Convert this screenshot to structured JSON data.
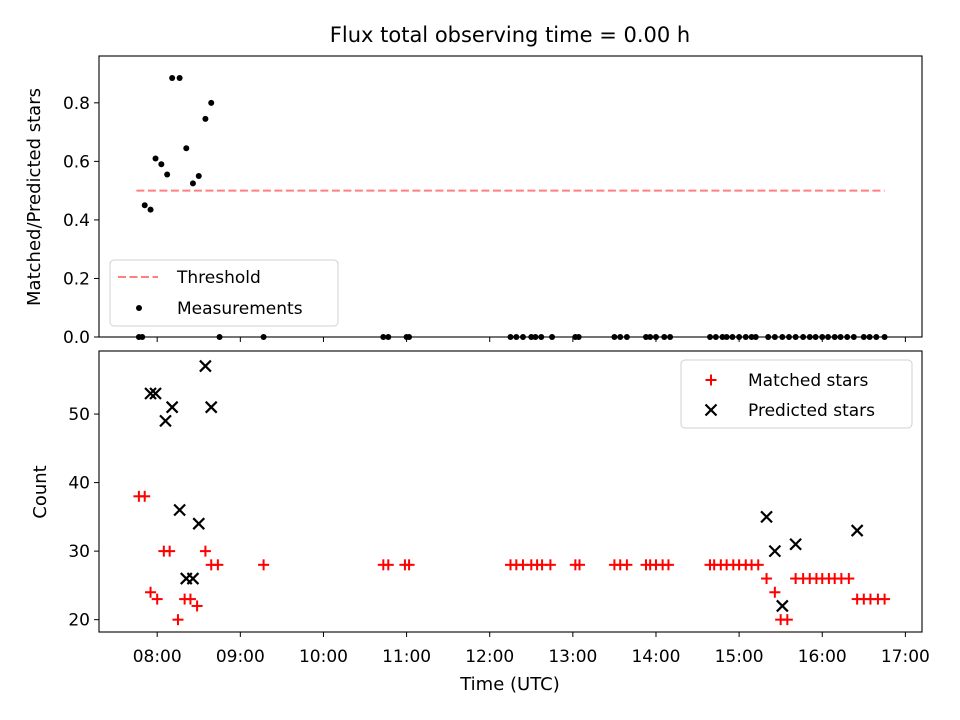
{
  "chart_data": [
    {
      "type": "scatter",
      "title": "Flux total observing time = 0.00 h",
      "xlabel": "",
      "ylabel": "Matched/Predicted stars",
      "xlim": [
        7.3,
        17.2
      ],
      "ylim": [
        0.0,
        0.96
      ],
      "yticks": [
        0.0,
        0.2,
        0.4,
        0.6,
        0.8
      ],
      "yticklabels": [
        "0.0",
        "0.2",
        "0.4",
        "0.6",
        "0.8"
      ],
      "legend_position": "lower-left",
      "threshold": {
        "name": "Threshold",
        "x": [
          7.75,
          16.75
        ],
        "y": 0.5,
        "color": "#ff7f7f"
      },
      "series": [
        {
          "name": "Measurements",
          "color": "#000000",
          "x": [
            7.85,
            7.92,
            7.98,
            8.05,
            8.12,
            8.18,
            8.27,
            8.35,
            8.43,
            8.5,
            8.58,
            8.65,
            7.78,
            7.82,
            8.75,
            9.28,
            10.72,
            10.78,
            11.0,
            11.03,
            12.25,
            12.32,
            12.4,
            12.5,
            12.55,
            12.62,
            12.75,
            13.03,
            13.07,
            13.5,
            13.57,
            13.65,
            13.88,
            13.93,
            14.0,
            14.1,
            14.17,
            14.65,
            14.72,
            14.8,
            14.85,
            14.92,
            15.0,
            15.08,
            15.15,
            15.2,
            15.35,
            15.43,
            15.52,
            15.6,
            15.68,
            15.77,
            15.85,
            15.92,
            16.0,
            16.07,
            16.15,
            16.22,
            16.3,
            16.38,
            16.5,
            16.57,
            16.65,
            16.75
          ],
          "y": [
            0.45,
            0.435,
            0.61,
            0.59,
            0.555,
            0.885,
            0.885,
            0.645,
            0.525,
            0.55,
            0.745,
            0.8,
            0.0,
            0.0,
            0.0,
            0.0,
            0.0,
            0.0,
            0.0,
            0.0,
            0.0,
            0.0,
            0.0,
            0.0,
            0.0,
            0.0,
            0.0,
            0.0,
            0.0,
            0.0,
            0.0,
            0.0,
            0.0,
            0.0,
            0.0,
            0.0,
            0.0,
            0.0,
            0.0,
            0.0,
            0.0,
            0.0,
            0.0,
            0.0,
            0.0,
            0.0,
            0.0,
            0.0,
            0.0,
            0.0,
            0.0,
            0.0,
            0.0,
            0.0,
            0.0,
            0.0,
            0.0,
            0.0,
            0.0,
            0.0,
            0.0,
            0.0,
            0.0,
            0.0
          ]
        }
      ]
    },
    {
      "type": "scatter",
      "title": "",
      "xlabel": "Time (UTC)",
      "ylabel": "Count",
      "xlim": [
        7.3,
        17.2
      ],
      "ylim": [
        18.2,
        59.2
      ],
      "xticks": [
        8,
        9,
        10,
        11,
        12,
        13,
        14,
        15,
        16,
        17
      ],
      "xticklabels": [
        "08:00",
        "09:00",
        "10:00",
        "11:00",
        "12:00",
        "13:00",
        "14:00",
        "15:00",
        "16:00",
        "17:00"
      ],
      "yticks": [
        20,
        30,
        40,
        50
      ],
      "yticklabels": [
        "20",
        "30",
        "40",
        "50"
      ],
      "legend_position": "upper-right",
      "series": [
        {
          "name": "Matched stars",
          "color": "#ff0000",
          "x": [
            7.78,
            7.85,
            7.92,
            8.0,
            8.08,
            8.15,
            8.25,
            8.33,
            8.4,
            8.48,
            8.58,
            8.65,
            8.73,
            9.28,
            10.72,
            10.78,
            10.98,
            11.03,
            12.25,
            12.32,
            12.4,
            12.5,
            12.57,
            12.63,
            12.73,
            13.03,
            13.08,
            13.5,
            13.57,
            13.65,
            13.88,
            13.93,
            14.0,
            14.08,
            14.15,
            14.65,
            14.7,
            14.78,
            14.85,
            14.93,
            15.0,
            15.08,
            15.15,
            15.23,
            15.33,
            15.43,
            15.5,
            15.58,
            15.68,
            15.77,
            15.85,
            15.93,
            16.0,
            16.08,
            16.15,
            16.23,
            16.32,
            16.42,
            16.5,
            16.58,
            16.67,
            16.75
          ],
          "y": [
            38,
            38,
            24,
            23,
            30,
            30,
            20,
            23,
            23,
            22,
            30,
            28,
            28,
            28,
            28,
            28,
            28,
            28,
            28,
            28,
            28,
            28,
            28,
            28,
            28,
            28,
            28,
            28,
            28,
            28,
            28,
            28,
            28,
            28,
            28,
            28,
            28,
            28,
            28,
            28,
            28,
            28,
            28,
            28,
            26,
            24,
            20,
            20,
            26,
            26,
            26,
            26,
            26,
            26,
            26,
            26,
            26,
            23,
            23,
            23,
            23,
            23
          ]
        },
        {
          "name": "Predicted stars",
          "color": "#000000",
          "x": [
            7.92,
            7.98,
            8.1,
            8.18,
            8.27,
            8.35,
            8.43,
            8.5,
            8.58,
            8.65,
            15.33,
            15.43,
            15.52,
            15.68,
            16.42
          ],
          "y": [
            53,
            53,
            49,
            51,
            36,
            26,
            26,
            34,
            57,
            51,
            35,
            30,
            22,
            31,
            33
          ]
        }
      ]
    }
  ]
}
